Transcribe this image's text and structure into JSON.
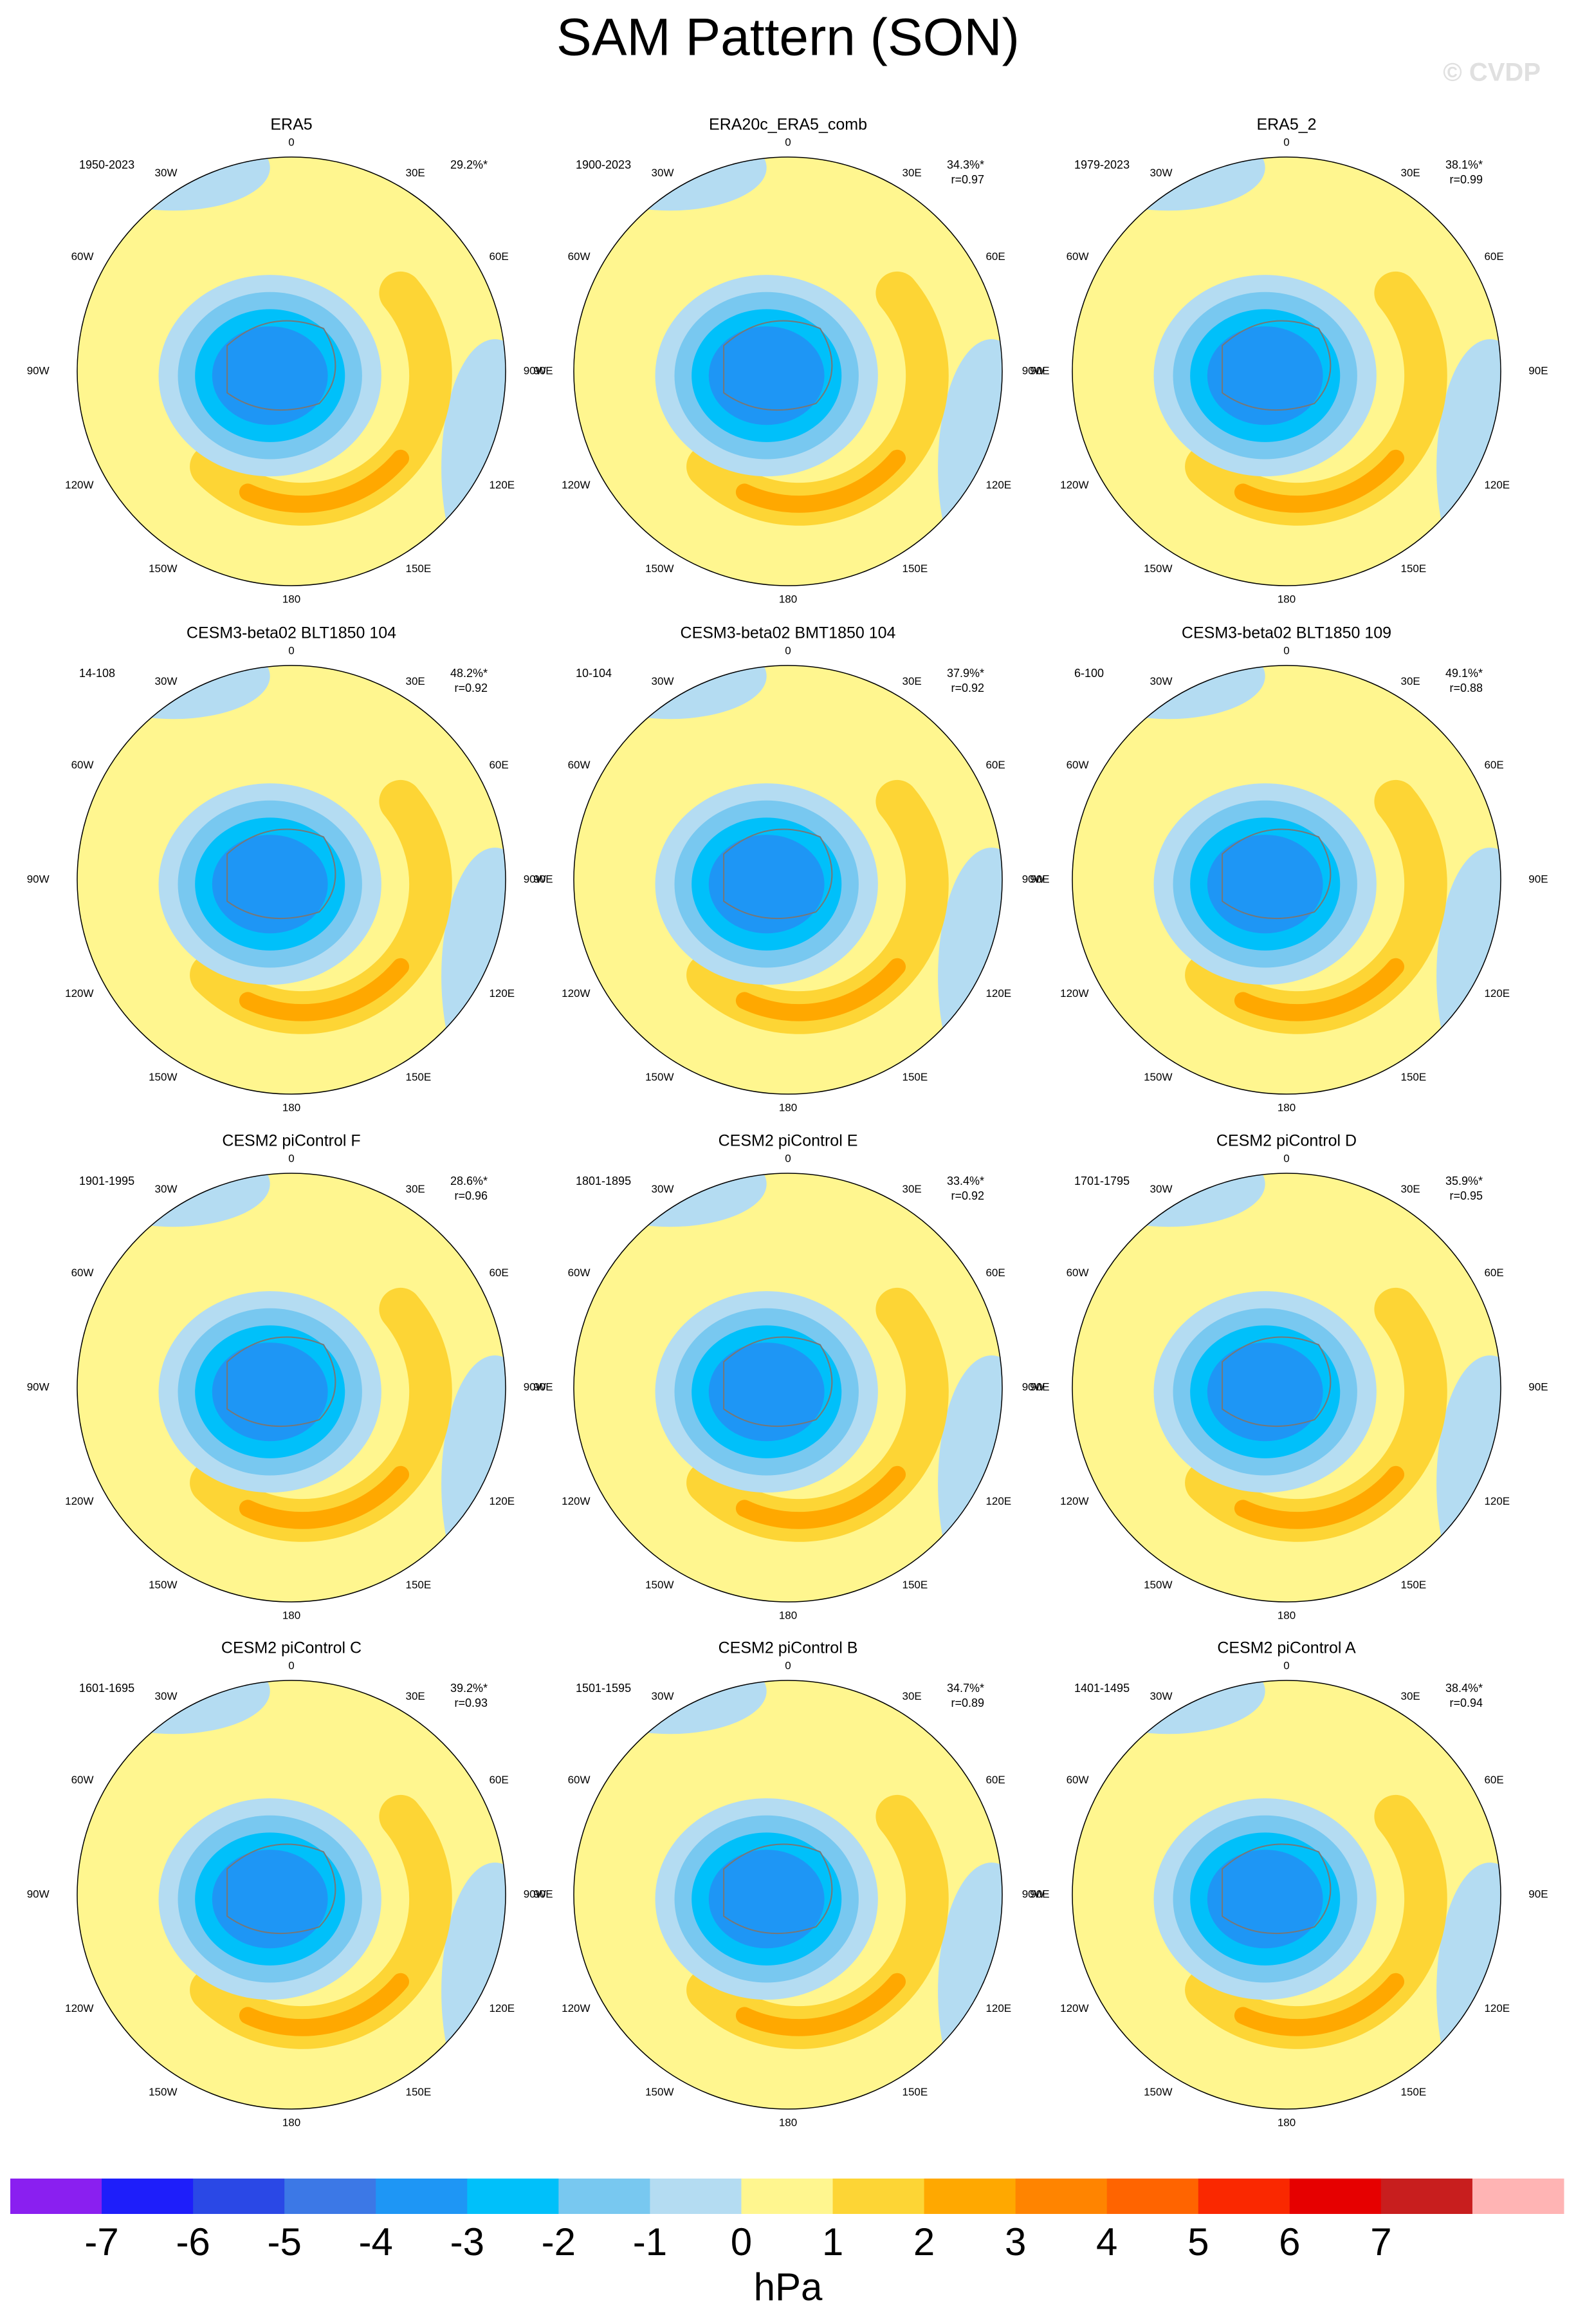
{
  "title": "SAM Pattern (SON)",
  "watermark": "© CVDP",
  "longitude_labels": [
    "0",
    "30E",
    "60E",
    "90E",
    "120E",
    "150E",
    "180",
    "150W",
    "120W",
    "90W",
    "60W",
    "30W"
  ],
  "panels": [
    {
      "title": "ERA5",
      "period": "1950-2023",
      "pct": "29.2%*"
    },
    {
      "title": "ERA20c_ERA5_comb",
      "period": "1900-2023",
      "pct": "34.3%*",
      "r": "r=0.97"
    },
    {
      "title": "ERA5_2",
      "period": "1979-2023",
      "pct": "38.1%*",
      "r": "r=0.99"
    },
    {
      "title": "CESM3-beta02 BLT1850 104",
      "period": "14-108",
      "pct": "48.2%*",
      "r": "r=0.92"
    },
    {
      "title": "CESM3-beta02 BMT1850 104",
      "period": "10-104",
      "pct": "37.9%*",
      "r": "r=0.92"
    },
    {
      "title": "CESM3-beta02 BLT1850 109",
      "period": "6-100",
      "pct": "49.1%*",
      "r": "r=0.88"
    },
    {
      "title": "CESM2 piControl F",
      "period": "1901-1995",
      "pct": "28.6%*",
      "r": "r=0.96"
    },
    {
      "title": "CESM2 piControl E",
      "period": "1801-1895",
      "pct": "33.4%*",
      "r": "r=0.92"
    },
    {
      "title": "CESM2 piControl D",
      "period": "1701-1795",
      "pct": "35.9%*",
      "r": "r=0.95"
    },
    {
      "title": "CESM2 piControl C",
      "period": "1601-1695",
      "pct": "39.2%*",
      "r": "r=0.93"
    },
    {
      "title": "CESM2 piControl B",
      "period": "1501-1595",
      "pct": "34.7%*",
      "r": "r=0.89"
    },
    {
      "title": "CESM2 piControl A",
      "period": "1401-1495",
      "pct": "38.4%*",
      "r": "r=0.94"
    }
  ],
  "colorbar": {
    "levels": [
      -7,
      -6,
      -5,
      -4,
      -3,
      -2,
      -1,
      0,
      1,
      2,
      3,
      4,
      5,
      6,
      7
    ],
    "colors": [
      "#8a1ff0",
      "#1e1efa",
      "#2a48e6",
      "#3c78e6",
      "#1e96f5",
      "#00c0fa",
      "#78c8f0",
      "#b4dcf2",
      "#fff68f",
      "#fdd535",
      "#ffa800",
      "#ff8400",
      "#ff6400",
      "#fa2800",
      "#e60000",
      "#c81e1e",
      "#ffb4b4"
    ],
    "units": "hPa"
  }
}
